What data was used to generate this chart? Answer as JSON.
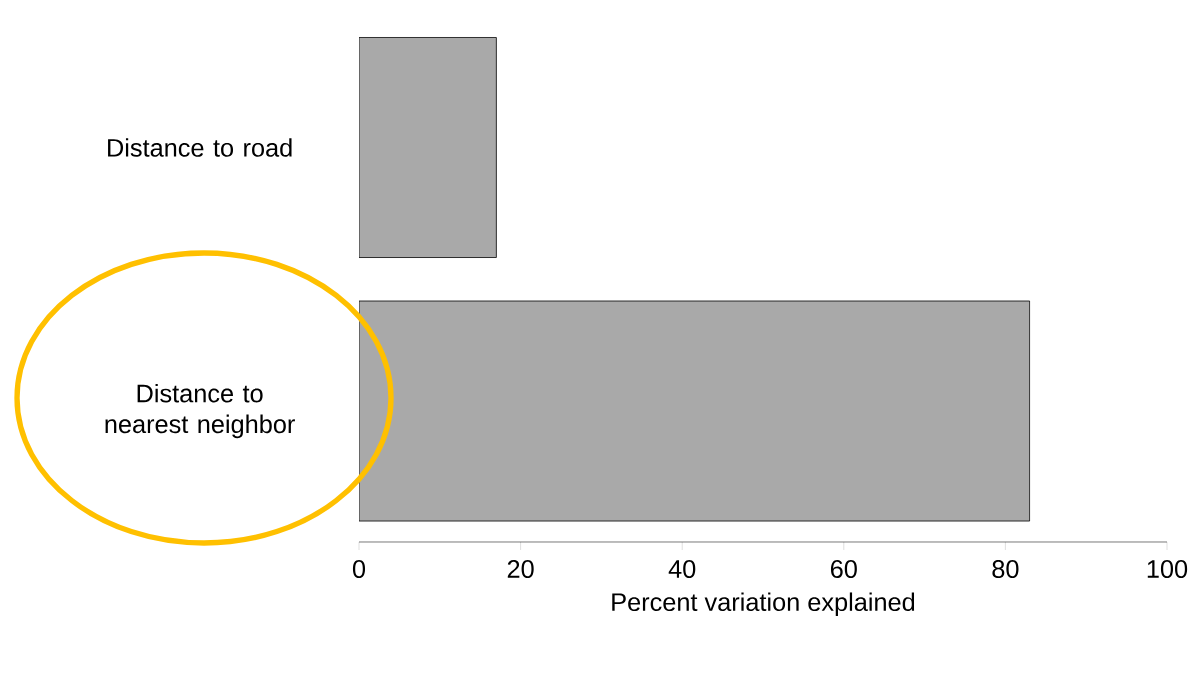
{
  "chart_data": {
    "type": "bar",
    "orientation": "horizontal",
    "categories": [
      "Distance to road",
      "Distance to nearest neighbor"
    ],
    "values": [
      17,
      83
    ],
    "color": "#a9a9a9",
    "xlim": [
      0,
      100
    ],
    "xticks": [
      0,
      20,
      40,
      60,
      80,
      100
    ],
    "xlabel": "Percent variation explained"
  }
}
